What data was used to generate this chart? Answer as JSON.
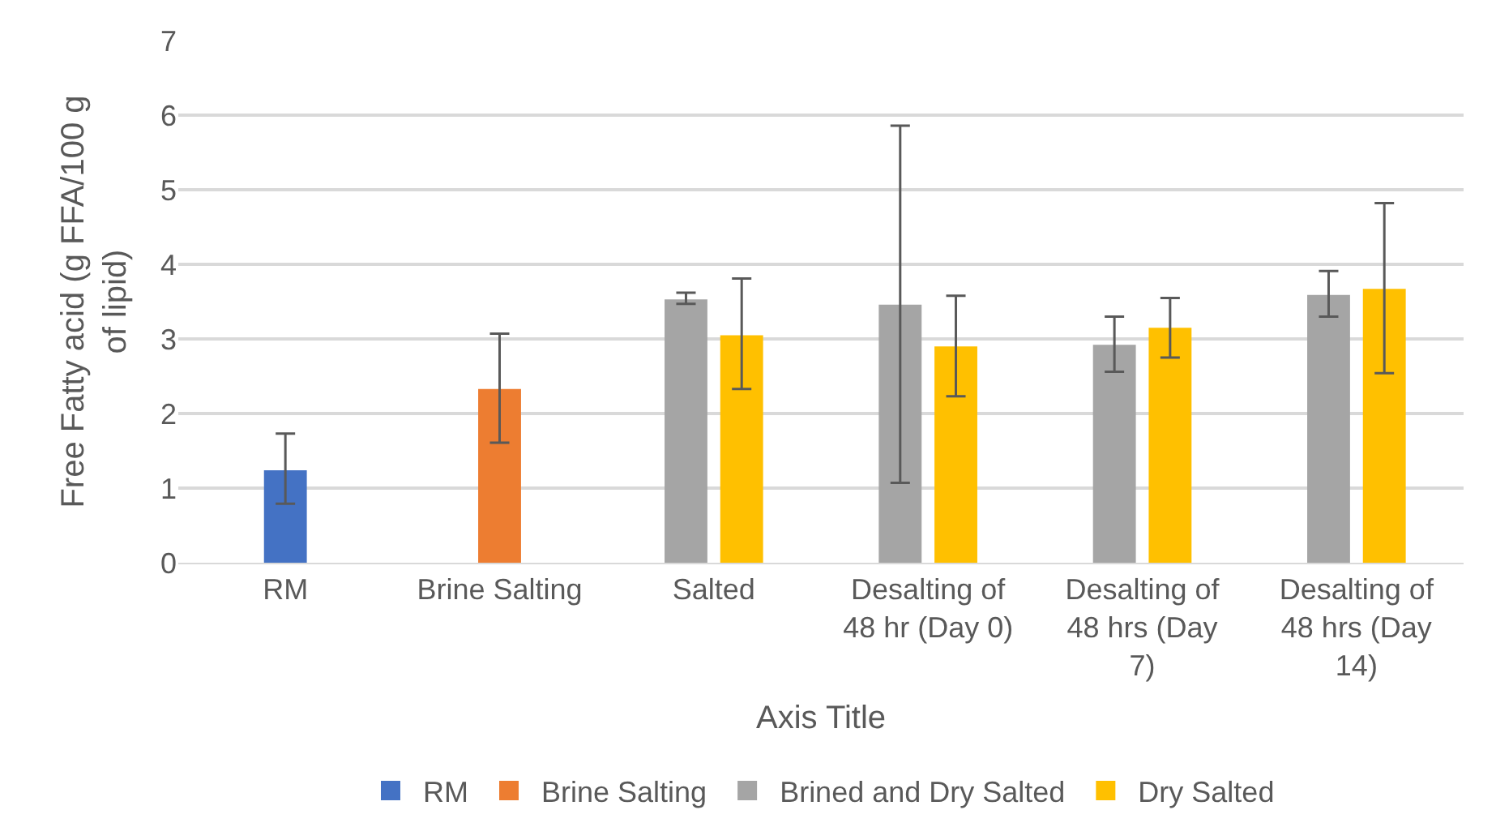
{
  "chart_data": {
    "type": "bar",
    "xlabel": "Axis Title",
    "ylabel": "Free Fatty acid (g FFA/100 g of lipid)",
    "categories": [
      "RM",
      "Brine Salting",
      "Salted",
      "Desalting of 48 hr (Day 0)",
      "Desalting of 48 hrs (Day 7)",
      "Desalting of 48 hrs (Day 14)"
    ],
    "series": [
      {
        "name": "RM",
        "color": "#4472c4",
        "values": [
          1.24,
          null,
          null,
          null,
          null,
          null
        ],
        "errors": [
          [
            0.79,
            1.73
          ],
          null,
          null,
          null,
          null,
          null
        ]
      },
      {
        "name": "Brine Salting",
        "color": "#ed7d31",
        "values": [
          null,
          2.33,
          null,
          null,
          null,
          null
        ],
        "errors": [
          null,
          [
            1.61,
            3.07
          ],
          null,
          null,
          null,
          null
        ]
      },
      {
        "name": "Brined and Dry Salted",
        "color": "#a5a5a5",
        "values": [
          null,
          null,
          3.53,
          3.46,
          2.92,
          3.59
        ],
        "errors": [
          null,
          null,
          [
            3.47,
            3.62
          ],
          [
            1.07,
            5.86
          ],
          [
            2.56,
            3.3
          ],
          [
            3.3,
            3.91
          ]
        ]
      },
      {
        "name": "Dry Salted",
        "color": "#ffc000",
        "values": [
          null,
          null,
          3.05,
          2.9,
          3.15,
          3.67
        ],
        "errors": [
          null,
          null,
          [
            2.33,
            3.81
          ],
          [
            2.23,
            3.58
          ],
          [
            2.75,
            3.55
          ],
          [
            2.54,
            4.82
          ]
        ]
      }
    ],
    "ylim": [
      0,
      7
    ],
    "yticks": [
      0,
      1,
      2,
      3,
      4,
      5,
      6,
      7
    ],
    "grid": "y",
    "legend": "bottom"
  }
}
